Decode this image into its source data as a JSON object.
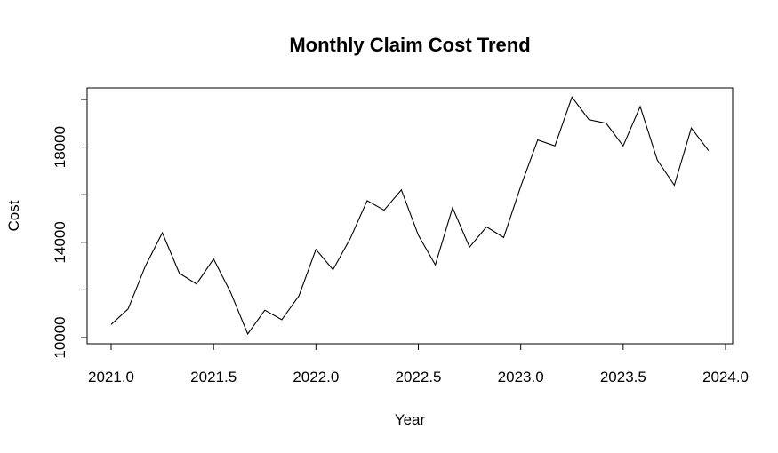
{
  "chart_data": {
    "type": "line",
    "title": "Monthly Claim Cost Trend",
    "xlabel": "Year",
    "ylabel": "Cost",
    "xlim": [
      2021.0,
      2024.0
    ],
    "ylim": [
      10000,
      20000
    ],
    "x_ticks": [
      2021.0,
      2021.5,
      2022.0,
      2022.5,
      2023.0,
      2023.5,
      2024.0
    ],
    "x_tick_labels": [
      "2021.0",
      "2021.5",
      "2022.0",
      "2022.5",
      "2023.0",
      "2023.5",
      "2024.0"
    ],
    "y_ticks": [
      10000,
      12000,
      14000,
      16000,
      18000,
      20000
    ],
    "y_tick_labels": [
      "10000",
      "",
      "14000",
      "",
      "18000",
      ""
    ],
    "grid": false,
    "legend": "none",
    "line_color": "#000000",
    "series": [
      {
        "x": [
          2021.0,
          2021.083,
          2021.167,
          2021.25,
          2021.333,
          2021.417,
          2021.5,
          2021.583,
          2021.667,
          2021.75,
          2021.833,
          2021.917,
          2022.0,
          2022.083,
          2022.167,
          2022.25,
          2022.333,
          2022.417,
          2022.5,
          2022.583,
          2022.667,
          2022.75,
          2022.833,
          2022.917,
          2023.0,
          2023.083,
          2023.167,
          2023.25,
          2023.333,
          2023.417,
          2023.5,
          2023.583,
          2023.667,
          2023.75,
          2023.833,
          2023.917
        ],
        "values": [
          10550,
          11200,
          13000,
          14400,
          12700,
          12250,
          13300,
          11900,
          10150,
          11150,
          10750,
          11750,
          13700,
          12850,
          14150,
          15750,
          15350,
          16200,
          14300,
          13050,
          15450,
          13800,
          14650,
          14200,
          16350,
          18300,
          18050,
          20100,
          19150,
          19000,
          18050,
          19700,
          17450,
          16400,
          18800,
          17850
        ]
      }
    ]
  }
}
